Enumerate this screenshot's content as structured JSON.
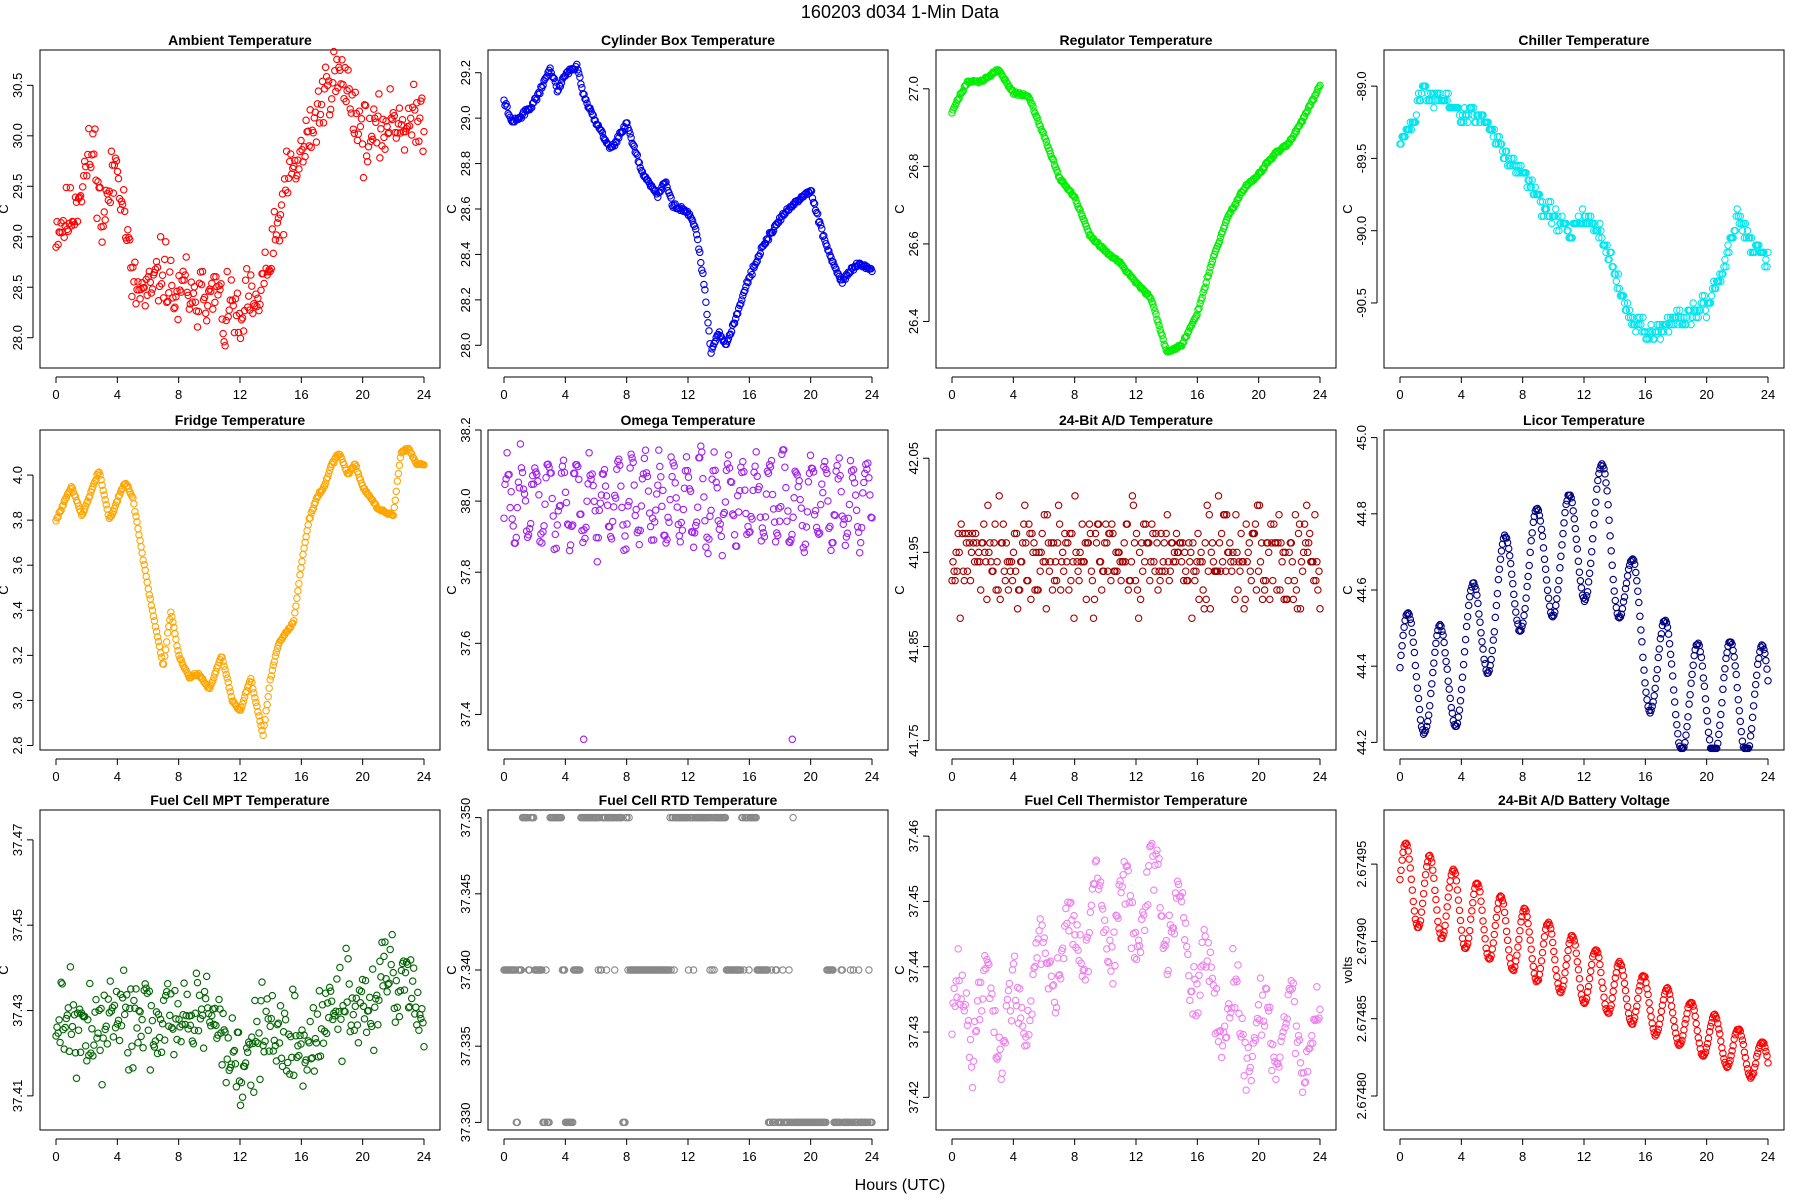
{
  "figure": {
    "title": "160203    d034    1-Min Data",
    "xlabel": "Hours (UTC)"
  },
  "chart_data": [
    {
      "type": "scatter",
      "title": "Ambient Temperature",
      "ylabel": "C",
      "color": "#ff0000",
      "xlim": [
        0,
        24
      ],
      "ylim": [
        27.7,
        30.85
      ],
      "xticks": [
        0,
        4,
        8,
        12,
        16,
        20,
        24
      ],
      "yticks": [
        28.0,
        28.5,
        29.0,
        29.5,
        30.0,
        30.5
      ],
      "ytick_labels": [
        "28.0",
        "28.5",
        "29.0",
        "29.5",
        "30.0",
        "30.5"
      ],
      "x": [
        0,
        1,
        2,
        2.5,
        3,
        4,
        4.5,
        5,
        6,
        7,
        8,
        8.5,
        9,
        9.5,
        10,
        10.5,
        11,
        11.5,
        12,
        12.5,
        13,
        13.5,
        14,
        15,
        16,
        17,
        18,
        19,
        20,
        21,
        22,
        23,
        24
      ],
      "y": [
        29.1,
        29.2,
        29.7,
        29.9,
        29.1,
        29.8,
        29.2,
        28.5,
        28.4,
        28.7,
        28.3,
        28.6,
        28.2,
        28.7,
        28.3,
        28.5,
        28.1,
        28.4,
        28.0,
        28.4,
        28.2,
        28.6,
        28.7,
        29.5,
        29.8,
        30.2,
        30.6,
        30.5,
        30.0,
        30.0,
        30.2,
        30.1,
        30.2
      ],
      "noise": 0.32,
      "seed": 11
    },
    {
      "type": "scatter",
      "title": "Cylinder Box Temperature",
      "ylabel": "C",
      "color": "#0000ee",
      "xlim": [
        0,
        24
      ],
      "ylim": [
        27.9,
        29.3
      ],
      "xticks": [
        0,
        4,
        8,
        12,
        16,
        20,
        24
      ],
      "yticks": [
        28.0,
        28.2,
        28.4,
        28.6,
        28.8,
        29.0,
        29.2
      ],
      "ytick_labels": [
        "28.0",
        "28.2",
        "28.4",
        "28.6",
        "28.8",
        "29.0",
        "29.2"
      ],
      "x": [
        0,
        0.5,
        1,
        2,
        3,
        3.5,
        4,
        4.8,
        5.2,
        6,
        7,
        8,
        9,
        10,
        10.5,
        11,
        12,
        12.5,
        13,
        13.5,
        14,
        14.5,
        15,
        16,
        17,
        18,
        19,
        20,
        21,
        22,
        23,
        24
      ],
      "y": [
        29.08,
        28.98,
        29.0,
        29.07,
        29.22,
        29.12,
        29.2,
        29.23,
        29.1,
        28.98,
        28.86,
        28.98,
        28.76,
        28.66,
        28.72,
        28.62,
        28.58,
        28.52,
        28.3,
        27.97,
        28.05,
        28.0,
        28.1,
        28.3,
        28.45,
        28.56,
        28.63,
        28.68,
        28.44,
        28.28,
        28.36,
        28.33
      ],
      "noise": 0.012,
      "seed": 22
    },
    {
      "type": "scatter",
      "title": "Regulator Temperature",
      "ylabel": "C",
      "color": "#00ee00",
      "xlim": [
        0,
        24
      ],
      "ylim": [
        26.28,
        27.1
      ],
      "xticks": [
        0,
        4,
        8,
        12,
        16,
        20,
        24
      ],
      "yticks": [
        26.4,
        26.6,
        26.8,
        27.0
      ],
      "ytick_labels": [
        "26.4",
        "26.6",
        "26.8",
        "27.0"
      ],
      "x": [
        0,
        1,
        2,
        3,
        4,
        5,
        6,
        7,
        8,
        9,
        10,
        11,
        12,
        13,
        14,
        15,
        16,
        17,
        18,
        19,
        20,
        21,
        22,
        23,
        24
      ],
      "y": [
        26.94,
        27.02,
        27.02,
        27.05,
        26.99,
        26.98,
        26.88,
        26.77,
        26.72,
        26.62,
        26.58,
        26.55,
        26.5,
        26.46,
        26.32,
        26.34,
        26.42,
        26.56,
        26.67,
        26.74,
        26.78,
        26.83,
        26.86,
        26.93,
        27.01
      ],
      "noise": 0.004,
      "seed": 33
    },
    {
      "type": "scatter",
      "title": "Chiller Temperature",
      "ylabel": "C",
      "color": "#00e5ee",
      "xlim": [
        0,
        24
      ],
      "ylim": [
        -90.95,
        -88.75
      ],
      "xticks": [
        0,
        4,
        8,
        12,
        16,
        20,
        24
      ],
      "yticks": [
        -90.5,
        -90.0,
        -89.5,
        -89.0
      ],
      "ytick_labels": [
        "-90.5",
        "-90.0",
        "-89.5",
        "-89.0"
      ],
      "x": [
        0,
        1,
        1.5,
        2,
        3,
        4,
        5,
        6,
        7,
        8,
        9,
        10,
        11,
        12,
        13,
        14,
        15,
        16,
        17,
        18,
        19,
        20,
        21,
        22,
        23,
        24
      ],
      "y": [
        -89.4,
        -89.2,
        -89.0,
        -89.1,
        -89.1,
        -89.2,
        -89.2,
        -89.3,
        -89.5,
        -89.6,
        -89.8,
        -89.9,
        -90.0,
        -89.9,
        -90.0,
        -90.3,
        -90.6,
        -90.7,
        -90.7,
        -90.6,
        -90.6,
        -90.5,
        -90.3,
        -89.9,
        -90.1,
        -90.2
      ],
      "noise": 0.06,
      "quantize": 0.05,
      "seed": 44
    },
    {
      "type": "scatter",
      "title": "Fridge Temperature",
      "ylabel": "C",
      "color": "#ffa500",
      "xlim": [
        0,
        24
      ],
      "ylim": [
        2.78,
        4.2
      ],
      "xticks": [
        0,
        4,
        8,
        12,
        16,
        20,
        24
      ],
      "yticks": [
        2.8,
        3.0,
        3.2,
        3.4,
        3.6,
        3.8,
        4.0
      ],
      "ytick_labels": [
        "2.8",
        "3.0",
        "3.2",
        "3.4",
        "3.6",
        "3.8",
        "4.0"
      ],
      "x": [
        0,
        1,
        1.7,
        2.8,
        3.5,
        4.5,
        5,
        6,
        7,
        7.5,
        8,
        8.7,
        9.3,
        10,
        10.8,
        11.5,
        12,
        12.7,
        13,
        13.5,
        14,
        14.5,
        15,
        15.5,
        16,
        16.5,
        17,
        17.5,
        18,
        18.5,
        19,
        19.5,
        20,
        20.5,
        21,
        22,
        22.5,
        23,
        23.5,
        24
      ],
      "y": [
        3.8,
        3.95,
        3.82,
        4.02,
        3.8,
        3.97,
        3.9,
        3.5,
        3.15,
        3.4,
        3.2,
        3.1,
        3.12,
        3.05,
        3.2,
        3.0,
        2.95,
        3.1,
        3.0,
        2.85,
        3.1,
        3.25,
        3.3,
        3.35,
        3.6,
        3.8,
        3.9,
        3.95,
        4.05,
        4.1,
        4.0,
        4.05,
        3.95,
        3.9,
        3.85,
        3.82,
        4.1,
        4.12,
        4.05,
        4.04
      ],
      "noise": 0.006,
      "seed": 55
    },
    {
      "type": "scatter",
      "title": "Omega Temperature",
      "ylabel": "C",
      "color": "#a020f0",
      "xlim": [
        0,
        24
      ],
      "ylim": [
        37.3,
        38.2
      ],
      "xticks": [
        0,
        4,
        8,
        12,
        16,
        20,
        24
      ],
      "yticks": [
        37.4,
        37.6,
        37.8,
        38.0,
        38.2
      ],
      "ytick_labels": [
        "37.4",
        "37.6",
        "37.8",
        "38.0",
        "38.2"
      ],
      "x": [
        0,
        24
      ],
      "y": [
        38.0,
        38.0
      ],
      "osc": 0.11,
      "osc_period": 0.9,
      "noise": 0.05,
      "seed": 66,
      "outliers": [
        [
          5.2,
          37.33
        ],
        [
          18.8,
          37.33
        ]
      ]
    },
    {
      "type": "scatter",
      "title": "24-Bit A/D Temperature",
      "ylabel": "C",
      "color": "#a00000",
      "xlim": [
        0,
        24
      ],
      "ylim": [
        41.74,
        42.08
      ],
      "xticks": [
        0,
        4,
        8,
        12,
        16,
        20,
        24
      ],
      "yticks": [
        41.75,
        41.85,
        41.95,
        42.05
      ],
      "ytick_labels": [
        "41.75",
        "41.85",
        "41.95",
        "42.05"
      ],
      "x": [
        0,
        24
      ],
      "y": [
        41.94,
        41.94
      ],
      "noise": 0.055,
      "quantize": 0.01,
      "seed": 77
    },
    {
      "type": "scatter",
      "title": "Licor Temperature",
      "ylabel": "C",
      "color": "#000080",
      "xlim": [
        0,
        24
      ],
      "ylim": [
        44.18,
        45.02
      ],
      "xticks": [
        0,
        4,
        8,
        12,
        16,
        20,
        24
      ],
      "yticks": [
        44.2,
        44.4,
        44.6,
        44.8,
        45.0
      ],
      "ytick_labels": [
        "44.2",
        "44.4",
        "44.6",
        "44.8",
        "45.0"
      ],
      "x": [
        0,
        3,
        6,
        8,
        10,
        12,
        13.5,
        15,
        16,
        18,
        20,
        22,
        24
      ],
      "y": [
        44.4,
        44.35,
        44.55,
        44.65,
        44.68,
        44.72,
        44.8,
        44.55,
        44.45,
        44.33,
        44.3,
        44.32,
        44.3
      ],
      "osc": 0.15,
      "osc_period": 2.1,
      "noise": 0.004,
      "seed": 88
    },
    {
      "type": "scatter",
      "title": "Fuel Cell MPT Temperature",
      "ylabel": "C",
      "color": "#006400",
      "xlim": [
        0,
        24
      ],
      "ylim": [
        37.402,
        37.477
      ],
      "xticks": [
        0,
        4,
        8,
        12,
        16,
        20,
        24
      ],
      "yticks": [
        37.41,
        37.43,
        37.45,
        37.47
      ],
      "ytick_labels": [
        "37.41",
        "37.43",
        "37.45",
        "37.47"
      ],
      "x": [
        0,
        2,
        4,
        6,
        8,
        10,
        12,
        14,
        16,
        18,
        20,
        22,
        24
      ],
      "y": [
        37.428,
        37.424,
        37.43,
        37.43,
        37.428,
        37.43,
        37.418,
        37.426,
        37.42,
        37.432,
        37.432,
        37.436,
        37.43
      ],
      "noise": 0.011,
      "seed": 99
    },
    {
      "type": "scatter",
      "title": "Fuel Cell RTD Temperature",
      "ylabel": "C",
      "color": "#888888",
      "xlim": [
        0,
        24
      ],
      "ylim": [
        37.3295,
        37.3505
      ],
      "xticks": [
        0,
        4,
        8,
        12,
        16,
        20,
        24
      ],
      "yticks": [
        37.33,
        37.335,
        37.34,
        37.345,
        37.35
      ],
      "ytick_labels": [
        "37.330",
        "37.335",
        "37.340",
        "37.345",
        "37.350"
      ],
      "x": [
        0,
        24
      ],
      "y": [
        37.34,
        37.34
      ],
      "levels": [
        37.33,
        37.34,
        37.35
      ],
      "level_bands": [
        [
          37.35,
          [
            [
              1.2,
              2.0
            ],
            [
              3.0,
              3.8
            ],
            [
              5.0,
              8.2
            ],
            [
              10.8,
              14.5
            ],
            [
              15.5,
              16.5
            ],
            [
              18.8,
              18.9
            ],
            [
              23.8,
              23.9
            ]
          ]
        ],
        [
          37.33,
          [
            [
              0.8,
              0.9
            ],
            [
              2.5,
              3.0
            ],
            [
              4.0,
              4.5
            ],
            [
              7.7,
              7.9
            ],
            [
              17.2,
              21.0
            ],
            [
              21.5,
              24.0
            ]
          ]
        ]
      ],
      "seed": 111
    },
    {
      "type": "scatter",
      "title": "Fuel Cell Thermistor Temperature",
      "ylabel": "C",
      "color": "#ee82ee",
      "xlim": [
        0,
        24
      ],
      "ylim": [
        37.415,
        37.464
      ],
      "xticks": [
        0,
        4,
        8,
        12,
        16,
        20,
        24
      ],
      "yticks": [
        37.42,
        37.43,
        37.44,
        37.45,
        37.46
      ],
      "ytick_labels": [
        "37.42",
        "37.43",
        "37.44",
        "37.45",
        "37.46"
      ],
      "x": [
        0,
        2,
        4,
        6,
        8,
        10,
        12,
        13.5,
        16,
        18,
        20,
        22,
        24
      ],
      "y": [
        37.432,
        37.434,
        37.432,
        37.44,
        37.445,
        37.448,
        37.448,
        37.452,
        37.44,
        37.432,
        37.43,
        37.43,
        37.428
      ],
      "osc": 0.006,
      "osc_period": 1.8,
      "noise": 0.0045,
      "seed": 122
    },
    {
      "type": "scatter",
      "title": "24-Bit A/D Battery Voltage",
      "ylabel": "volts",
      "color": "#ff0000",
      "xlim": [
        0,
        24
      ],
      "ylim": [
        2.674778,
        2.674985
      ],
      "xticks": [
        0,
        4,
        8,
        12,
        16,
        20,
        24
      ],
      "yticks": [
        2.6748,
        2.67485,
        2.6749,
        2.67495
      ],
      "ytick_labels": [
        "2.67480",
        "2.67485",
        "2.67490",
        "2.67495"
      ],
      "x": [
        0,
        24
      ],
      "y": [
        2.67494,
        2.67482
      ],
      "osc": 2.6e-05,
      "osc_period": 1.55,
      "osc_decay": 0.5,
      "noise": 8e-07,
      "seed": 133
    }
  ]
}
